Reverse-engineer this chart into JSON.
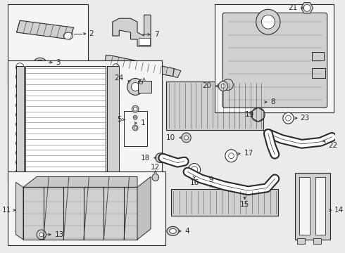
{
  "bg_color": "#ebebeb",
  "line_color": "#2a2a2a",
  "box_bg": "#f5f5f5",
  "box_fill": "#e8e8e8",
  "part_fill": "#d0d0d0",
  "white": "#ffffff"
}
